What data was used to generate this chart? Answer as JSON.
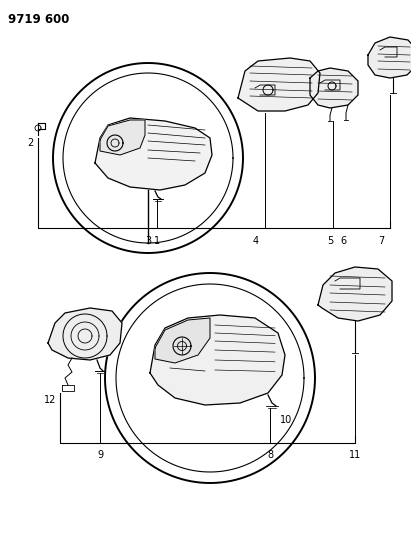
{
  "title": "9719 600",
  "bg": "#ffffff",
  "lc": "#000000",
  "figsize": [
    4.11,
    5.33
  ],
  "dpi": 100
}
